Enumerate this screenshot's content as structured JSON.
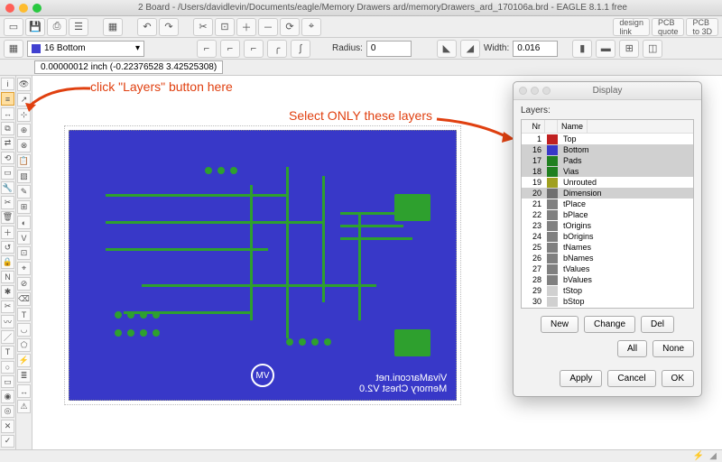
{
  "window": {
    "title": "2 Board - /Users/davidlevin/Documents/eagle/Memory Drawers ard/memoryDrawers_ard_170106a.brd - EAGLE 8.1.1 free"
  },
  "layer_selector": {
    "current": "16 Bottom",
    "swatch": "#4040d0"
  },
  "toolbar2": {
    "radius_label": "Radius:",
    "radius_value": "0",
    "width_label": "Width:",
    "width_value": "0.016"
  },
  "coord": {
    "text": "0.00000012 inch (-0.22376528 3.42525308)"
  },
  "board": {
    "bg": "#3838c8",
    "trace_color": "#2ea02e",
    "text1": "VivaMarconi.net",
    "text2": "Memory Chest V2.0",
    "logo_text": "MV"
  },
  "annotations": {
    "a1": "click \"Layers\" button here",
    "a2": "Select ONLY these layers",
    "color": "#e04010"
  },
  "dialog": {
    "title": "Display",
    "label": "Layers:",
    "hdr_nr": "Nr",
    "hdr_name": "Name",
    "rows": [
      {
        "nr": "1",
        "c": "#c02020",
        "n": "Top",
        "sel": false
      },
      {
        "nr": "16",
        "c": "#3838c8",
        "n": "Bottom",
        "sel": true
      },
      {
        "nr": "17",
        "c": "#208020",
        "n": "Pads",
        "sel": true
      },
      {
        "nr": "18",
        "c": "#208020",
        "n": "Vias",
        "sel": true
      },
      {
        "nr": "19",
        "c": "#a0a020",
        "n": "Unrouted",
        "sel": false
      },
      {
        "nr": "20",
        "c": "#707070",
        "n": "Dimension",
        "sel": true
      },
      {
        "nr": "21",
        "c": "#808080",
        "n": "tPlace",
        "sel": false
      },
      {
        "nr": "22",
        "c": "#808080",
        "n": "bPlace",
        "sel": false
      },
      {
        "nr": "23",
        "c": "#808080",
        "n": "tOrigins",
        "sel": false
      },
      {
        "nr": "24",
        "c": "#808080",
        "n": "bOrigins",
        "sel": false
      },
      {
        "nr": "25",
        "c": "#808080",
        "n": "tNames",
        "sel": false
      },
      {
        "nr": "26",
        "c": "#808080",
        "n": "bNames",
        "sel": false
      },
      {
        "nr": "27",
        "c": "#808080",
        "n": "tValues",
        "sel": false
      },
      {
        "nr": "28",
        "c": "#808080",
        "n": "bValues",
        "sel": false
      },
      {
        "nr": "29",
        "c": "#d0d0d0",
        "n": "tStop",
        "sel": false
      },
      {
        "nr": "30",
        "c": "#d0d0d0",
        "n": "bStop",
        "sel": false
      }
    ],
    "btn_new": "New",
    "btn_change": "Change",
    "btn_del": "Del",
    "btn_all": "All",
    "btn_none": "None",
    "btn_apply": "Apply",
    "btn_cancel": "Cancel",
    "btn_ok": "OK"
  }
}
